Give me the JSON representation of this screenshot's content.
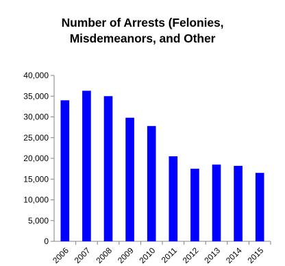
{
  "chart_data": {
    "type": "bar",
    "title_lines": [
      "Number of Arrests (Felonies,",
      "Misdemeanors, and Other"
    ],
    "categories": [
      "2006",
      "2007",
      "2008",
      "2009",
      "2010",
      "2011",
      "2012",
      "2013",
      "2014",
      "2015"
    ],
    "values": [
      34000,
      36300,
      35000,
      29800,
      27800,
      20500,
      17500,
      18500,
      18200,
      16500
    ],
    "ylim": [
      0,
      40000
    ],
    "yticks": [
      0,
      5000,
      10000,
      15000,
      20000,
      25000,
      30000,
      35000,
      40000
    ],
    "ytick_labels": [
      "0",
      "5,000",
      "10,000",
      "15,000",
      "20,000",
      "25,000",
      "30,000",
      "35,000",
      "40,000"
    ],
    "bar_color": "#0000ff",
    "grid": false,
    "legend": "none"
  }
}
